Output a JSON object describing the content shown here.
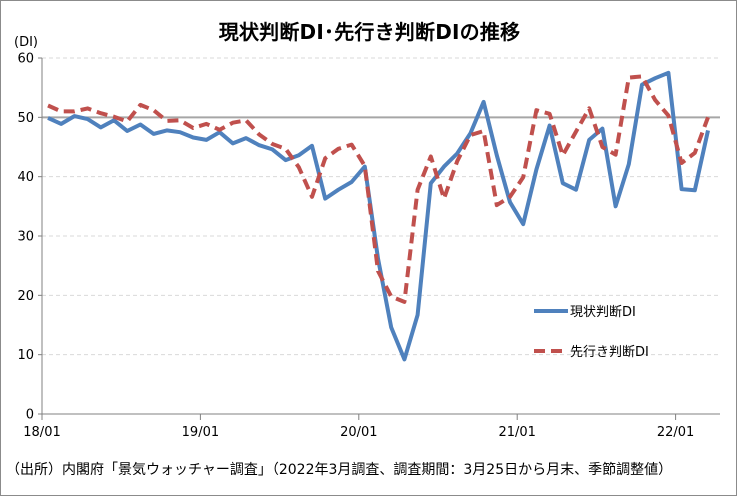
{
  "colors": {
    "current": "#4f81bd",
    "outlook": "#c0504d",
    "reference": "#a6a6a6",
    "grid": "#d9d9d9",
    "axis": "#808080"
  },
  "chart_data": {
    "type": "line",
    "title": "現状判断DI･先行き判断DIの推移",
    "ylabel": "(DI)",
    "source": "（出所）内閣府「景気ウォッチャー調査」（2022年3月調査、調査期間：3月25日から月末、季節調整値）",
    "x_tick_labels": [
      "18/01",
      "19/01",
      "20/01",
      "21/01",
      "22/01"
    ],
    "x_tick_months": [
      "2018-01",
      "2019-01",
      "2020-01",
      "2021-01",
      "2022-01"
    ],
    "x_range": [
      "2018-01",
      "2022-03"
    ],
    "ylim": [
      0,
      60
    ],
    "y_ticks": [
      0,
      10,
      20,
      30,
      40,
      50,
      60
    ],
    "grid": true,
    "reference_line": 50,
    "legend_position": "right",
    "x": [
      "2018-01",
      "2018-02",
      "2018-03",
      "2018-04",
      "2018-05",
      "2018-06",
      "2018-07",
      "2018-08",
      "2018-09",
      "2018-10",
      "2018-11",
      "2018-12",
      "2019-01",
      "2019-02",
      "2019-03",
      "2019-04",
      "2019-05",
      "2019-06",
      "2019-07",
      "2019-08",
      "2019-09",
      "2019-10",
      "2019-11",
      "2019-12",
      "2020-01",
      "2020-02",
      "2020-03",
      "2020-04",
      "2020-05",
      "2020-06",
      "2020-07",
      "2020-08",
      "2020-09",
      "2020-10",
      "2020-11",
      "2020-12",
      "2021-01",
      "2021-02",
      "2021-03",
      "2021-04",
      "2021-05",
      "2021-06",
      "2021-07",
      "2021-08",
      "2021-09",
      "2021-10",
      "2021-11",
      "2021-12",
      "2022-01",
      "2022-02",
      "2022-03"
    ],
    "series": [
      {
        "name": "現状判断DI",
        "style": "solid",
        "color": "#4f81bd",
        "values": [
          49.9,
          48.9,
          50.2,
          49.7,
          48.3,
          49.5,
          47.7,
          48.8,
          47.2,
          47.8,
          47.5,
          46.6,
          46.2,
          47.5,
          45.6,
          46.5,
          45.3,
          44.6,
          42.8,
          43.6,
          45.2,
          36.3,
          37.8,
          39.1,
          41.7,
          26.2,
          14.6,
          9.2,
          16.7,
          38.9,
          41.7,
          43.9,
          47.3,
          52.6,
          43.6,
          35.7,
          32.0,
          41.2,
          48.6,
          38.9,
          37.8,
          46.2,
          48.1,
          35.0,
          42.1,
          55.5,
          56.6,
          57.5,
          37.9,
          37.7,
          47.8
        ]
      },
      {
        "name": "先行き判断DI",
        "style": "dashed",
        "color": "#c0504d",
        "values": [
          52.0,
          51.0,
          51.0,
          51.5,
          50.7,
          50.1,
          49.3,
          52.1,
          51.2,
          49.4,
          49.5,
          48.2,
          48.9,
          47.9,
          49.1,
          49.5,
          47.1,
          45.5,
          44.7,
          41.6,
          36.6,
          43.1,
          44.7,
          45.4,
          41.8,
          24.1,
          19.8,
          18.9,
          37.8,
          43.4,
          36.3,
          42.6,
          47.0,
          47.7,
          35.2,
          36.6,
          39.9,
          51.2,
          50.6,
          43.6,
          47.6,
          51.5,
          45.0,
          43.7,
          56.7,
          56.9,
          52.9,
          50.3,
          42.3,
          44.0,
          50.0
        ]
      }
    ]
  }
}
